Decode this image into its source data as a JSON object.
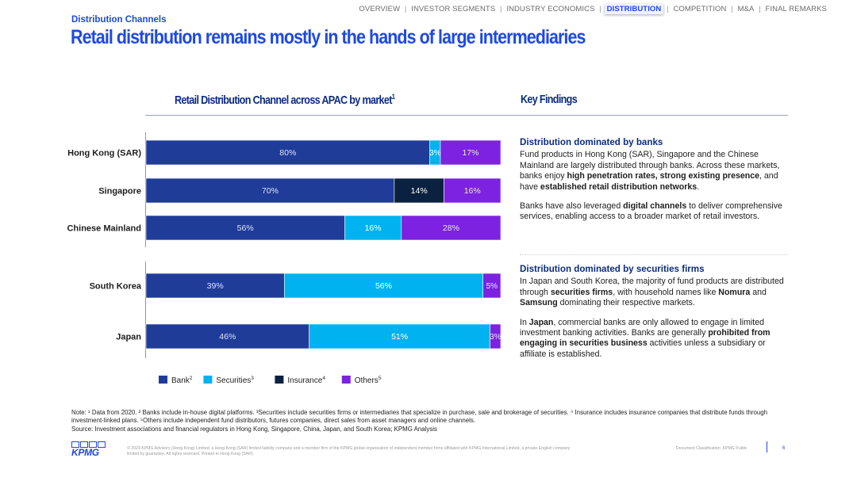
{
  "nav": {
    "items": [
      {
        "label": "OVERVIEW",
        "active": false
      },
      {
        "label": "INVESTOR SEGMENTS",
        "active": false
      },
      {
        "label": "INDUSTRY ECONOMICS",
        "active": false
      },
      {
        "label": "DISTRIBUTION",
        "active": true
      },
      {
        "label": "COMPETITION",
        "active": false
      },
      {
        "label": "M&A",
        "active": false
      },
      {
        "label": "FINAL REMARKS",
        "active": false
      }
    ]
  },
  "header": {
    "section": "Distribution Channels",
    "title": "Retail distribution remains mostly in the hands of large intermediaries"
  },
  "chart_title": {
    "text": "Retail Distribution Channel across APAC by market",
    "sup": "1"
  },
  "key_findings_title": "Key Findings",
  "colors": {
    "bank": "#1f3c99",
    "securities": "#00b3f0",
    "insurance": "#0b2140",
    "others": "#7d22e0",
    "accent": "#1e49e2",
    "dark_blue": "#0c2d7e"
  },
  "chart_data": {
    "type": "bar",
    "orientation": "horizontal",
    "stacked": true,
    "percent": true,
    "title": "Retail Distribution Channel across APAC by market",
    "xlim": [
      0,
      100
    ],
    "categories": [
      "Hong Kong (SAR)",
      "Singapore",
      "Chinese Mainland",
      "South Korea",
      "Japan"
    ],
    "groups": [
      [
        "Hong Kong (SAR)",
        "Singapore",
        "Chinese Mainland"
      ],
      [
        "South Korea",
        "Japan"
      ]
    ],
    "series": [
      {
        "name": "Bank",
        "sup": "2",
        "key": "bank",
        "values": [
          80,
          70,
          56,
          39,
          46
        ],
        "labels": [
          "80%",
          "70%",
          "56%",
          "39%",
          "46%"
        ]
      },
      {
        "name": "Securities",
        "sup": "3",
        "key": "securities",
        "values": [
          3,
          0,
          16,
          56,
          51
        ],
        "labels": [
          "3%",
          "",
          "16%",
          "56%",
          "51%"
        ]
      },
      {
        "name": "Insurance",
        "sup": "4",
        "key": "insurance",
        "values": [
          0,
          14,
          0,
          0,
          0
        ],
        "labels": [
          "",
          "14%",
          "",
          "",
          ""
        ]
      },
      {
        "name": "Others",
        "sup": "5",
        "key": "others",
        "values": [
          17,
          16,
          28,
          5,
          3
        ],
        "labels": [
          "17%",
          "16%",
          "28%",
          "5%",
          "3%"
        ]
      }
    ],
    "legend": "bottom-left"
  },
  "findings": [
    {
      "heading": "Distribution dominated by banks",
      "paragraphs": [
        [
          {
            "t": "Fund products in Hong Kong (SAR), Singapore and the Chinese Mainland are largely distributed through banks. Across these markets, banks enjoy "
          },
          {
            "t": "high penetration rates, strong existing presence",
            "b": true
          },
          {
            "t": ", and have "
          },
          {
            "t": "established retail distribution networks",
            "b": true
          },
          {
            "t": "."
          }
        ],
        [
          {
            "t": "Banks have also leveraged "
          },
          {
            "t": "digital channels",
            "b": true
          },
          {
            "t": " to deliver comprehensive services, enabling access to a broader market of retail investors."
          }
        ]
      ]
    },
    {
      "heading": "Distribution dominated by securities firms",
      "paragraphs": [
        [
          {
            "t": "In Japan and South Korea, the majority of fund products are distributed through "
          },
          {
            "t": "securities firms",
            "b": true
          },
          {
            "t": ", with household names like "
          },
          {
            "t": "Nomura",
            "b": true
          },
          {
            "t": " and "
          },
          {
            "t": "Samsung",
            "b": true
          },
          {
            "t": " dominating their respective markets."
          }
        ],
        [
          {
            "t": "In "
          },
          {
            "t": "Japan",
            "b": true
          },
          {
            "t": ", commercial banks are only allowed to engage in limited investment banking activities. Banks are generally "
          },
          {
            "t": "prohibited from engaging in securities business",
            "b": true
          },
          {
            "t": " activities unless a subsidiary or affiliate is established."
          }
        ]
      ]
    }
  ],
  "notes": {
    "note": "Note: ¹ Data from 2020. ² Banks include in-house digital platforms. ³Securities include securities firms or intermediaries that specialize in purchase, sale and brokerage of securities. ⁴ Insurance includes insurance companies that distribute funds through investment-linked plans. ⁵Others include independent fund distributors, futures companies, direct sales from asset managers and online channels.",
    "source": "Source: Investment associations and financial regulators in Hong Kong, Singapore, China, Japan, and South Korea; KPMG Analysis"
  },
  "footer": {
    "logo_text": "KPMG",
    "copyright": "© 2023 KPMG Advisory (Hong Kong) Limited, a Hong Kong (SAR) limited liability company and a member firm of the KPMG global organisation of independent member firms affiliated with KPMG International Limited, a private English company limited by guarantee. All rights reserved. Printed in Hong Kong (SAR).",
    "classification": "Document Classification: KPMG Public",
    "page_number": "6"
  }
}
